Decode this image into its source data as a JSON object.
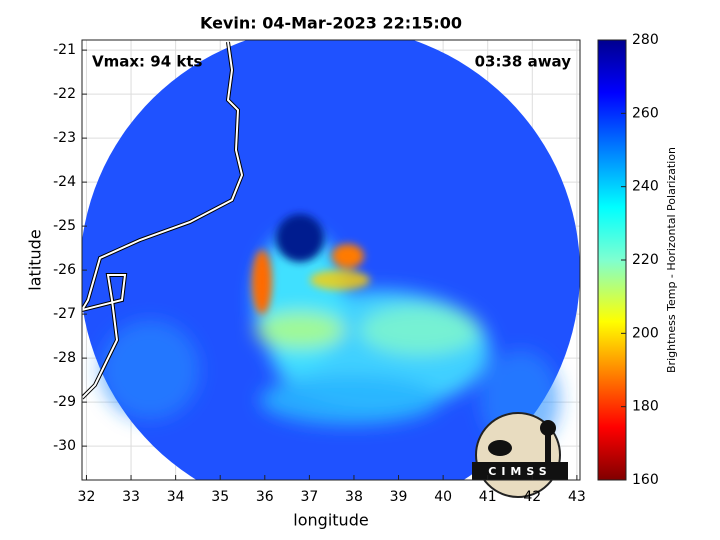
{
  "chart_data": {
    "type": "heatmap",
    "title": "Kevin: 04-Mar-2023 22:15:00",
    "annotations": [
      "Vmax: 94 kts",
      "03:38 away"
    ],
    "xlabel": "longitude",
    "ylabel": "latitude",
    "xlim": [
      31.9,
      43.07
    ],
    "ylim": [
      -30.77,
      -20.77
    ],
    "xticks": [
      32,
      33,
      34,
      35,
      36,
      37,
      38,
      39,
      40,
      41,
      42,
      43
    ],
    "yticks": [
      -30,
      -29,
      -28,
      -27,
      -26,
      -25,
      -24,
      -23,
      -22,
      -21
    ],
    "grid": true,
    "colorbar": {
      "label": "Brightness Temp - Horizontal Polarization",
      "lim": [
        160,
        280
      ],
      "ticks": [
        160,
        180,
        200,
        220,
        240,
        260,
        280
      ],
      "colormap": "jet"
    },
    "logo": "CIMSS"
  }
}
